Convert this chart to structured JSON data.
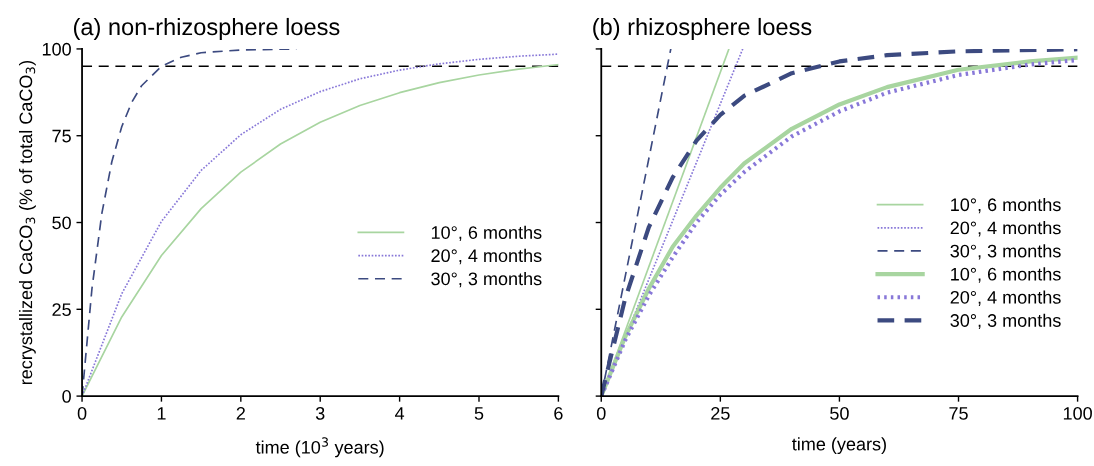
{
  "chart_data": [
    {
      "type": "line",
      "title": "(a) non-rhizosphere loess",
      "xlabel": "time (10$^{3}$ years)",
      "ylabel": "recrystallized CaCO$_{3}$ (% of total CaCO$_{3}$)",
      "xlim": [
        0,
        6
      ],
      "xticks": [
        0,
        1,
        2,
        3,
        4,
        5,
        6
      ],
      "ylim": [
        0,
        100
      ],
      "yticks": [
        0,
        25,
        50,
        75,
        100
      ],
      "grid": false,
      "legend": "right",
      "marker": "none",
      "ref_lines": [
        {
          "axis": "y",
          "value": 95,
          "color": "#000000",
          "line_style": "dashed"
        }
      ],
      "series": [
        {
          "name": "10°, 6 months",
          "color": "#a8d5a0",
          "line_style": "solid",
          "x": [
            0,
            0.5,
            1,
            1.5,
            2,
            2.5,
            3,
            3.5,
            4,
            4.5,
            5,
            5.5,
            6
          ],
          "values": [
            0,
            22.8,
            40.5,
            54,
            64.5,
            72.6,
            78.9,
            83.7,
            87.4,
            90.3,
            92.5,
            94.2,
            95.5
          ]
        },
        {
          "name": "20°, 4 months",
          "color": "#8878d8",
          "line_style": "dotted",
          "x": [
            0,
            0.5,
            1,
            1.5,
            2,
            2.5,
            3,
            3.5,
            4,
            4.5,
            5,
            5.5,
            6
          ],
          "values": [
            0,
            29.5,
            50.3,
            65,
            75.3,
            82.6,
            87.7,
            91.4,
            93.9,
            95.7,
            97,
            97.9,
            98.5
          ]
        },
        {
          "name": "30°, 3 months",
          "color": "#3c4a80",
          "line_style": "dashed",
          "x": [
            0,
            0.125,
            0.25,
            0.375,
            0.5,
            0.625,
            0.75,
            1,
            1.25,
            1.5,
            2,
            2.7
          ],
          "values": [
            0,
            31,
            52.7,
            67.5,
            77.6,
            84.6,
            89.4,
            95,
            97.6,
            98.9,
            99.7,
            100
          ]
        }
      ]
    },
    {
      "type": "line",
      "title": "(b) rhizosphere loess",
      "xlabel": "time (years)",
      "tick_labels": "x",
      "xlim": [
        0,
        100
      ],
      "xticks": [
        0,
        25,
        50,
        75,
        100
      ],
      "ylim": [
        0,
        100
      ],
      "yticks": [
        0,
        25,
        50,
        75,
        100
      ],
      "grid": false,
      "legend": "right",
      "marker": "none",
      "ref_lines": [
        {
          "axis": "y",
          "value": 95,
          "color": "#000000",
          "line_style": "dashed"
        }
      ],
      "series": [
        {
          "name": "10°, 6 months",
          "color": "#a8d5a0",
          "line_style": "solid",
          "x": [
            0,
            26.8
          ],
          "values": [
            0,
            100
          ]
        },
        {
          "name": "20°, 4 months",
          "color": "#8878d8",
          "line_style": "dotted",
          "x": [
            0,
            29.7
          ],
          "values": [
            0,
            100
          ]
        },
        {
          "name": "30°, 3 months",
          "color": "#3c4a80",
          "line_style": "dashed",
          "x": [
            0,
            14.6
          ],
          "values": [
            0,
            100
          ]
        },
        {
          "name": "10°, 6 months",
          "color": "#a8d5a0",
          "line_style": "solid",
          "x": [
            0,
            5,
            10,
            15,
            20,
            25,
            30,
            40,
            50,
            60,
            75,
            90,
            100
          ],
          "values": [
            0,
            17,
            31,
            43,
            52,
            60,
            67,
            77,
            84,
            89,
            94,
            96.4,
            97.5
          ]
        },
        {
          "name": "20°, 4 months",
          "color": "#8878d8",
          "line_style": "dotted",
          "x": [
            0,
            5,
            10,
            15,
            20,
            25,
            30,
            40,
            50,
            60,
            75,
            90,
            100
          ],
          "values": [
            0,
            16,
            29,
            40,
            50,
            58,
            64.5,
            74.8,
            82,
            87.4,
            92.5,
            95.5,
            96.8
          ]
        },
        {
          "name": "30°, 3 months",
          "color": "#3c4a80",
          "line_style": "dashed",
          "x": [
            0,
            5,
            10,
            15,
            20,
            25,
            30,
            40,
            50,
            60,
            75,
            100
          ],
          "values": [
            0,
            28,
            48.7,
            63,
            73.6,
            81,
            86.5,
            93,
            96.4,
            98.2,
            99.3,
            99.9
          ]
        }
      ]
    }
  ]
}
